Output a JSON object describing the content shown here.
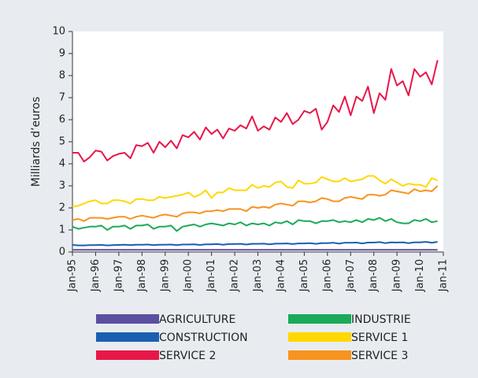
{
  "chart_data": {
    "type": "line",
    "ylabel": "Milliards d’euros",
    "x": [
      "1995-01",
      "1995-04",
      "1995-07",
      "1995-10",
      "1996-01",
      "1996-04",
      "1996-07",
      "1996-10",
      "1997-01",
      "1997-04",
      "1997-07",
      "1997-10",
      "1998-01",
      "1998-04",
      "1998-07",
      "1998-10",
      "1999-01",
      "1999-04",
      "1999-07",
      "1999-10",
      "2000-01",
      "2000-04",
      "2000-07",
      "2000-10",
      "2001-01",
      "2001-04",
      "2001-07",
      "2001-10",
      "2002-01",
      "2002-04",
      "2002-07",
      "2002-10",
      "2003-01",
      "2003-04",
      "2003-07",
      "2003-10",
      "2004-01",
      "2004-04",
      "2004-07",
      "2004-10",
      "2005-01",
      "2005-04",
      "2005-07",
      "2005-10",
      "2006-01",
      "2006-04",
      "2006-07",
      "2006-10",
      "2007-01",
      "2007-04",
      "2007-07",
      "2007-10",
      "2008-01",
      "2008-04",
      "2008-07",
      "2008-10",
      "2009-01",
      "2009-04",
      "2009-07",
      "2009-10",
      "2010-01",
      "2010-04",
      "2010-07",
      "2010-10"
    ],
    "series": [
      {
        "name": "AGRICULTURE",
        "color": "#5b4fa0",
        "values": [
          0.1,
          0.1,
          0.1,
          0.1,
          0.1,
          0.1,
          0.1,
          0.1,
          0.1,
          0.1,
          0.1,
          0.1,
          0.1,
          0.1,
          0.1,
          0.1,
          0.1,
          0.1,
          0.1,
          0.1,
          0.1,
          0.1,
          0.1,
          0.1,
          0.1,
          0.1,
          0.1,
          0.1,
          0.1,
          0.1,
          0.1,
          0.1,
          0.1,
          0.1,
          0.1,
          0.1,
          0.1,
          0.1,
          0.1,
          0.1,
          0.1,
          0.1,
          0.1,
          0.1,
          0.1,
          0.1,
          0.1,
          0.1,
          0.1,
          0.1,
          0.1,
          0.1,
          0.1,
          0.1,
          0.1,
          0.1,
          0.1,
          0.1,
          0.1,
          0.1,
          0.1,
          0.1,
          0.1,
          0.1
        ]
      },
      {
        "name": "INDUSTRIE",
        "color": "#1aaa5a",
        "values": [
          1.15,
          1.05,
          1.1,
          1.15,
          1.15,
          1.2,
          1.0,
          1.15,
          1.15,
          1.2,
          1.05,
          1.2,
          1.2,
          1.25,
          1.05,
          1.15,
          1.15,
          1.2,
          0.95,
          1.15,
          1.2,
          1.25,
          1.15,
          1.25,
          1.3,
          1.25,
          1.2,
          1.3,
          1.25,
          1.35,
          1.2,
          1.3,
          1.25,
          1.3,
          1.2,
          1.35,
          1.3,
          1.4,
          1.25,
          1.45,
          1.4,
          1.4,
          1.3,
          1.4,
          1.4,
          1.45,
          1.35,
          1.4,
          1.35,
          1.45,
          1.35,
          1.5,
          1.45,
          1.55,
          1.4,
          1.5,
          1.35,
          1.3,
          1.3,
          1.45,
          1.4,
          1.5,
          1.35,
          1.4
        ]
      },
      {
        "name": "CONSTRUCTION",
        "color": "#1a5fb0",
        "values": [
          0.32,
          0.3,
          0.3,
          0.31,
          0.31,
          0.32,
          0.3,
          0.31,
          0.32,
          0.33,
          0.31,
          0.33,
          0.33,
          0.34,
          0.31,
          0.33,
          0.33,
          0.34,
          0.31,
          0.34,
          0.34,
          0.35,
          0.32,
          0.35,
          0.35,
          0.36,
          0.33,
          0.36,
          0.36,
          0.37,
          0.34,
          0.37,
          0.37,
          0.38,
          0.35,
          0.38,
          0.38,
          0.39,
          0.36,
          0.39,
          0.39,
          0.4,
          0.37,
          0.4,
          0.4,
          0.42,
          0.38,
          0.42,
          0.42,
          0.43,
          0.39,
          0.43,
          0.43,
          0.45,
          0.4,
          0.44,
          0.43,
          0.44,
          0.4,
          0.44,
          0.44,
          0.46,
          0.42,
          0.46
        ]
      },
      {
        "name": "SERVICE 1",
        "color": "#ffd800",
        "values": [
          2.05,
          2.1,
          2.2,
          2.3,
          2.35,
          2.2,
          2.2,
          2.35,
          2.35,
          2.3,
          2.2,
          2.4,
          2.4,
          2.35,
          2.35,
          2.5,
          2.45,
          2.5,
          2.55,
          2.6,
          2.7,
          2.5,
          2.6,
          2.8,
          2.45,
          2.7,
          2.7,
          2.9,
          2.8,
          2.8,
          2.8,
          3.05,
          2.9,
          3.0,
          2.95,
          3.15,
          3.2,
          2.95,
          2.9,
          3.25,
          3.1,
          3.1,
          3.15,
          3.4,
          3.3,
          3.2,
          3.2,
          3.35,
          3.2,
          3.25,
          3.3,
          3.45,
          3.45,
          3.25,
          3.1,
          3.3,
          3.15,
          3.0,
          3.1,
          3.05,
          3.05,
          2.95,
          3.35,
          3.25
        ]
      },
      {
        "name": "SERVICE 2",
        "color": "#e8174a",
        "values": [
          4.5,
          4.5,
          4.1,
          4.3,
          4.6,
          4.55,
          4.15,
          4.35,
          4.45,
          4.5,
          4.25,
          4.85,
          4.8,
          4.95,
          4.5,
          5.0,
          4.75,
          5.05,
          4.7,
          5.3,
          5.2,
          5.45,
          5.1,
          5.65,
          5.35,
          5.55,
          5.15,
          5.6,
          5.5,
          5.75,
          5.6,
          6.15,
          5.5,
          5.7,
          5.55,
          6.1,
          5.9,
          6.3,
          5.8,
          6.0,
          6.4,
          6.3,
          6.5,
          5.55,
          5.9,
          6.65,
          6.35,
          7.05,
          6.2,
          7.05,
          6.85,
          7.5,
          6.3,
          7.2,
          6.9,
          8.3,
          7.55,
          7.75,
          7.1,
          8.3,
          7.95,
          8.15,
          7.6,
          8.7
        ]
      },
      {
        "name": "SERVICE 3",
        "color": "#f7931e",
        "values": [
          1.45,
          1.5,
          1.4,
          1.55,
          1.55,
          1.55,
          1.5,
          1.55,
          1.6,
          1.6,
          1.5,
          1.6,
          1.65,
          1.6,
          1.55,
          1.65,
          1.7,
          1.65,
          1.6,
          1.75,
          1.8,
          1.8,
          1.75,
          1.85,
          1.85,
          1.9,
          1.85,
          1.95,
          1.95,
          1.95,
          1.85,
          2.05,
          2.0,
          2.05,
          2.0,
          2.15,
          2.2,
          2.15,
          2.1,
          2.3,
          2.3,
          2.25,
          2.3,
          2.45,
          2.4,
          2.3,
          2.3,
          2.45,
          2.5,
          2.45,
          2.4,
          2.6,
          2.6,
          2.55,
          2.6,
          2.8,
          2.75,
          2.7,
          2.65,
          2.85,
          2.75,
          2.8,
          2.75,
          3.0
        ]
      }
    ],
    "xlim": [
      "1995-01",
      "2011-01"
    ],
    "xticks": [
      {
        "value": "1995-01",
        "label": "Jan-95"
      },
      {
        "value": "1996-01",
        "label": "Jan-96"
      },
      {
        "value": "1997-01",
        "label": "Jan-97"
      },
      {
        "value": "1998-01",
        "label": "Jan-98"
      },
      {
        "value": "1999-01",
        "label": "Jan-99"
      },
      {
        "value": "2000-01",
        "label": "Jan-00"
      },
      {
        "value": "2001-01",
        "label": "Jan-01"
      },
      {
        "value": "2002-01",
        "label": "Jan-02"
      },
      {
        "value": "2003-01",
        "label": "Jan-03"
      },
      {
        "value": "2004-01",
        "label": "Jan-04"
      },
      {
        "value": "2005-01",
        "label": "Jan-05"
      },
      {
        "value": "2006-01",
        "label": "Jan-06"
      },
      {
        "value": "2007-01",
        "label": "Jan-07"
      },
      {
        "value": "2008-01",
        "label": "Jan-08"
      },
      {
        "value": "2009-01",
        "label": "Jan-09"
      },
      {
        "value": "2010-01",
        "label": "Jan-10"
      },
      {
        "value": "2011-01",
        "label": "Jan-11"
      }
    ],
    "ylim": [
      0,
      10
    ],
    "yticks": [
      0,
      1,
      2,
      3,
      4,
      5,
      6,
      7,
      8,
      9,
      10
    ],
    "grid": false
  }
}
